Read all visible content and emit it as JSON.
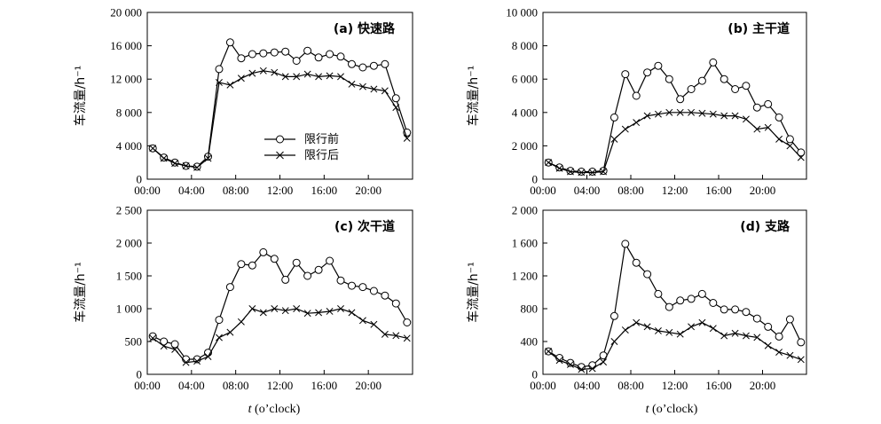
{
  "xlabel_prefix": "t",
  "xlabel_suffix": " (o’clock)",
  "ylabel": "车流量/h⁻¹",
  "legend": {
    "before": "限行前",
    "after": "限行后"
  },
  "chart_data": [
    {
      "type": "line",
      "title": "(a)  快速路",
      "xticks": [
        "00:00",
        "04:00",
        "08:00",
        "12:00",
        "16:00",
        "20:00"
      ],
      "xlim": [
        0,
        24
      ],
      "ylim": [
        0,
        20000
      ],
      "yticks": [
        0,
        4000,
        8000,
        12000,
        16000,
        20000
      ],
      "yticklabels": [
        "0",
        "4 000",
        "8 000",
        "12 000",
        "16 000",
        "20 000"
      ],
      "legend_position": "center",
      "series": [
        {
          "name": "限行前",
          "marker": "circle",
          "x": [
            0.5,
            1.5,
            2.5,
            3.5,
            4.5,
            5.5,
            6.5,
            7.5,
            8.5,
            9.5,
            10.5,
            11.5,
            12.5,
            13.5,
            14.5,
            15.5,
            16.5,
            17.5,
            18.5,
            19.5,
            20.5,
            21.5,
            22.5,
            23.5
          ],
          "values": [
            3700,
            2600,
            2000,
            1600,
            1500,
            2700,
            13200,
            16400,
            14500,
            15000,
            15100,
            15200,
            15300,
            14200,
            15400,
            14600,
            15000,
            14700,
            13800,
            13400,
            13600,
            13800,
            9700,
            5600
          ]
        },
        {
          "name": "限行后",
          "marker": "cross",
          "x": [
            0.5,
            1.5,
            2.5,
            3.5,
            4.5,
            5.5,
            6.5,
            7.5,
            8.5,
            9.5,
            10.5,
            11.5,
            12.5,
            13.5,
            14.5,
            15.5,
            16.5,
            17.5,
            18.5,
            19.5,
            20.5,
            21.5,
            22.5,
            23.5
          ],
          "values": [
            3700,
            2500,
            1900,
            1600,
            1400,
            2500,
            11600,
            11300,
            12100,
            12700,
            13000,
            12800,
            12300,
            12300,
            12600,
            12300,
            12400,
            12300,
            11400,
            11100,
            10800,
            10600,
            8600,
            4900
          ]
        }
      ]
    },
    {
      "type": "line",
      "title": "(b) 主干道",
      "xticks": [
        "00:00",
        "04:00",
        "08:00",
        "12:00",
        "16:00",
        "20:00"
      ],
      "xlim": [
        0,
        24
      ],
      "ylim": [
        0,
        10000
      ],
      "yticks": [
        0,
        2000,
        4000,
        6000,
        8000,
        10000
      ],
      "yticklabels": [
        "0",
        "2 000",
        "4 000",
        "6 000",
        "8 000",
        "10 000"
      ],
      "series": [
        {
          "name": "限行前",
          "marker": "circle",
          "x": [
            0.5,
            1.5,
            2.5,
            3.5,
            4.5,
            5.5,
            6.5,
            7.5,
            8.5,
            9.5,
            10.5,
            11.5,
            12.5,
            13.5,
            14.5,
            15.5,
            16.5,
            17.5,
            18.5,
            19.5,
            20.5,
            21.5,
            22.5,
            23.5
          ],
          "values": [
            1000,
            700,
            500,
            450,
            450,
            500,
            3700,
            6300,
            5000,
            6400,
            6800,
            6000,
            4800,
            5400,
            5900,
            7000,
            6000,
            5400,
            5600,
            4300,
            4500,
            3700,
            2400,
            1600
          ]
        },
        {
          "name": "限行后",
          "marker": "cross",
          "x": [
            0.5,
            1.5,
            2.5,
            3.5,
            4.5,
            5.5,
            6.5,
            7.5,
            8.5,
            9.5,
            10.5,
            11.5,
            12.5,
            13.5,
            14.5,
            15.5,
            16.5,
            17.5,
            18.5,
            19.5,
            20.5,
            21.5,
            22.5,
            23.5
          ],
          "values": [
            1000,
            650,
            450,
            400,
            400,
            450,
            2400,
            3000,
            3400,
            3800,
            3900,
            4000,
            4000,
            4000,
            3950,
            3900,
            3800,
            3800,
            3600,
            3000,
            3100,
            2400,
            2000,
            1300
          ]
        }
      ]
    },
    {
      "type": "line",
      "title": "(c) 次干道",
      "xticks": [
        "00:00",
        "04:00",
        "08:00",
        "12:00",
        "16:00",
        "20:00"
      ],
      "xlim": [
        0,
        24
      ],
      "ylim": [
        0,
        2500
      ],
      "yticks": [
        0,
        500,
        1000,
        1500,
        2000,
        2500
      ],
      "yticklabels": [
        "0",
        "500",
        "1 000",
        "1 500",
        "2 000",
        "2 500"
      ],
      "series": [
        {
          "name": "限行前",
          "marker": "circle",
          "x": [
            0.5,
            1.5,
            2.5,
            3.5,
            4.5,
            5.5,
            6.5,
            7.5,
            8.5,
            9.5,
            10.5,
            11.5,
            12.5,
            13.5,
            14.5,
            15.5,
            16.5,
            17.5,
            18.5,
            19.5,
            20.5,
            21.5,
            22.5,
            23.5
          ],
          "values": [
            580,
            500,
            460,
            230,
            230,
            330,
            830,
            1330,
            1680,
            1660,
            1860,
            1760,
            1440,
            1700,
            1500,
            1590,
            1730,
            1430,
            1350,
            1330,
            1270,
            1200,
            1080,
            790
          ]
        },
        {
          "name": "限行后",
          "marker": "cross",
          "x": [
            0.5,
            1.5,
            2.5,
            3.5,
            4.5,
            5.5,
            6.5,
            7.5,
            8.5,
            9.5,
            10.5,
            11.5,
            12.5,
            13.5,
            14.5,
            15.5,
            16.5,
            17.5,
            18.5,
            19.5,
            20.5,
            21.5,
            22.5,
            23.5
          ],
          "values": [
            550,
            430,
            380,
            180,
            200,
            270,
            560,
            640,
            800,
            1000,
            940,
            1000,
            970,
            1000,
            930,
            940,
            960,
            1000,
            940,
            820,
            760,
            610,
            590,
            550
          ]
        }
      ]
    },
    {
      "type": "line",
      "title": "(d) 支路",
      "xticks": [
        "00:00",
        "04:00",
        "08:00",
        "12:00",
        "16:00",
        "20:00"
      ],
      "xlim": [
        0,
        24
      ],
      "ylim": [
        0,
        2000
      ],
      "yticks": [
        0,
        400,
        800,
        1200,
        1600,
        2000
      ],
      "yticklabels": [
        "0",
        "400",
        "800",
        "1 200",
        "1 600",
        "2 000"
      ],
      "series": [
        {
          "name": "限行前",
          "marker": "circle",
          "x": [
            0.5,
            1.5,
            2.5,
            3.5,
            4.5,
            5.5,
            6.5,
            7.5,
            8.5,
            9.5,
            10.5,
            11.5,
            12.5,
            13.5,
            14.5,
            15.5,
            16.5,
            17.5,
            18.5,
            19.5,
            20.5,
            21.5,
            22.5,
            23.5
          ],
          "values": [
            280,
            200,
            140,
            90,
            110,
            230,
            710,
            1590,
            1360,
            1220,
            980,
            820,
            900,
            920,
            980,
            870,
            790,
            790,
            760,
            680,
            580,
            460,
            670,
            390
          ]
        },
        {
          "name": "限行后",
          "marker": "cross",
          "x": [
            0.5,
            1.5,
            2.5,
            3.5,
            4.5,
            5.5,
            6.5,
            7.5,
            8.5,
            9.5,
            10.5,
            11.5,
            12.5,
            13.5,
            14.5,
            15.5,
            16.5,
            17.5,
            18.5,
            19.5,
            20.5,
            21.5,
            22.5,
            23.5
          ],
          "values": [
            280,
            170,
            120,
            60,
            70,
            150,
            400,
            540,
            630,
            580,
            530,
            510,
            490,
            580,
            630,
            560,
            470,
            500,
            470,
            450,
            350,
            270,
            230,
            180
          ]
        }
      ]
    }
  ]
}
